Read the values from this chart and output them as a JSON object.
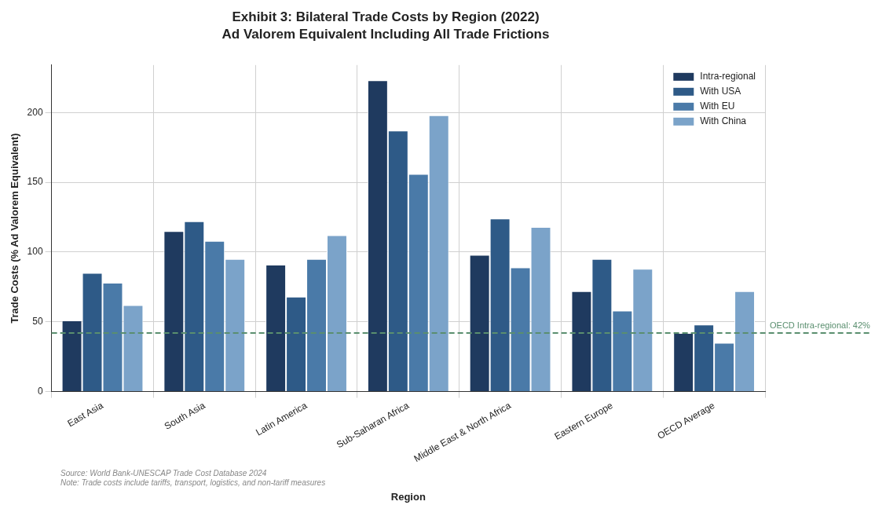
{
  "chart_data": {
    "type": "bar",
    "title": "Exhibit 3: Bilateral Trade Costs by Region (2022)",
    "subtitle": "Ad Valorem Equivalent Including All Trade Frictions",
    "xlabel": "Region",
    "ylabel": "Trade Costs (% Ad Valorem Equivalent)",
    "categories": [
      "East Asia",
      "South Asia",
      "Latin America",
      "Sub-Saharan Africa",
      "Middle East & North Africa",
      "Eastern Europe",
      "OECD Average"
    ],
    "series": [
      {
        "name": "Intra-regional",
        "color": "#1f3a5f",
        "values": [
          51,
          115,
          91,
          223,
          98,
          72,
          42
        ]
      },
      {
        "name": "With USA",
        "color": "#2e5a87",
        "values": [
          85,
          122,
          68,
          187,
          124,
          95,
          48
        ]
      },
      {
        "name": "With EU",
        "color": "#4a7aa8",
        "values": [
          78,
          108,
          95,
          156,
          89,
          58,
          35
        ]
      },
      {
        "name": "With China",
        "color": "#7ba3c9",
        "values": [
          62,
          95,
          112,
          198,
          118,
          88,
          72
        ]
      }
    ],
    "ylim": [
      0,
      234
    ],
    "yticks": [
      0,
      50,
      100,
      150,
      200
    ],
    "grid": true,
    "legend": "top right",
    "ref_lines": [
      {
        "axis": "y",
        "value": 42,
        "label": "OECD Intra-regional: 42%",
        "color": "#5a8f6f",
        "line_style": "dashed"
      }
    ],
    "annotations": [
      "Source: World Bank-UNESCAP Trade Cost Database 2024",
      "Note: Trade costs include tariffs, transport, logistics, and non-tariff measures"
    ]
  }
}
